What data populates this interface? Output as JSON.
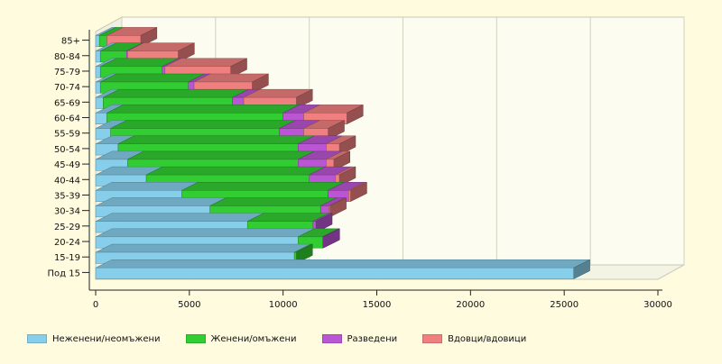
{
  "chart_data": {
    "type": "bar",
    "orientation": "horizontal",
    "stacked": true,
    "three_d": true,
    "categories": [
      "85+",
      "80-84",
      "75-79",
      "70-74",
      "65-69",
      "60-64",
      "55-59",
      "50-54",
      "45-49",
      "40-44",
      "35-39",
      "30-34",
      "25-29",
      "20-24",
      "15-19",
      "Под 15"
    ],
    "series": [
      {
        "name": "Неженени/неомъжени",
        "color": "#87ceeb",
        "values": [
          200,
          250,
          250,
          250,
          400,
          600,
          800,
          1200,
          1700,
          2700,
          4600,
          6100,
          8100,
          10800,
          10600,
          25500
        ]
      },
      {
        "name": "Женени/омъжени",
        "color": "#32cd32",
        "values": [
          400,
          1400,
          3300,
          4700,
          6900,
          9400,
          9000,
          9600,
          9100,
          8700,
          7800,
          5900,
          3500,
          1300,
          100,
          0
        ]
      },
      {
        "name": "Разведени",
        "color": "#ba55d3",
        "values": [
          0,
          50,
          150,
          300,
          600,
          1100,
          1300,
          1500,
          1500,
          1400,
          1100,
          450,
          150,
          50,
          0,
          0
        ]
      },
      {
        "name": "Вдовци/вдовици",
        "color": "#f08080",
        "values": [
          1800,
          2700,
          3500,
          3100,
          2800,
          2300,
          1300,
          700,
          400,
          200,
          100,
          50,
          0,
          0,
          0,
          0
        ]
      }
    ],
    "xlim": [
      0,
      30000
    ],
    "xticks": [
      "0",
      "5000",
      "10000",
      "15000",
      "20000",
      "25000",
      "30000"
    ],
    "grid": true,
    "legend_position": "bottom"
  },
  "legend": {
    "items": [
      {
        "label": "Неженени/неомъжени",
        "color": "#87ceeb"
      },
      {
        "label": "Женени/омъжени",
        "color": "#32cd32"
      },
      {
        "label": "Разведени",
        "color": "#ba55d3"
      },
      {
        "label": "Вдовци/вдовици",
        "color": "#f08080"
      }
    ]
  }
}
